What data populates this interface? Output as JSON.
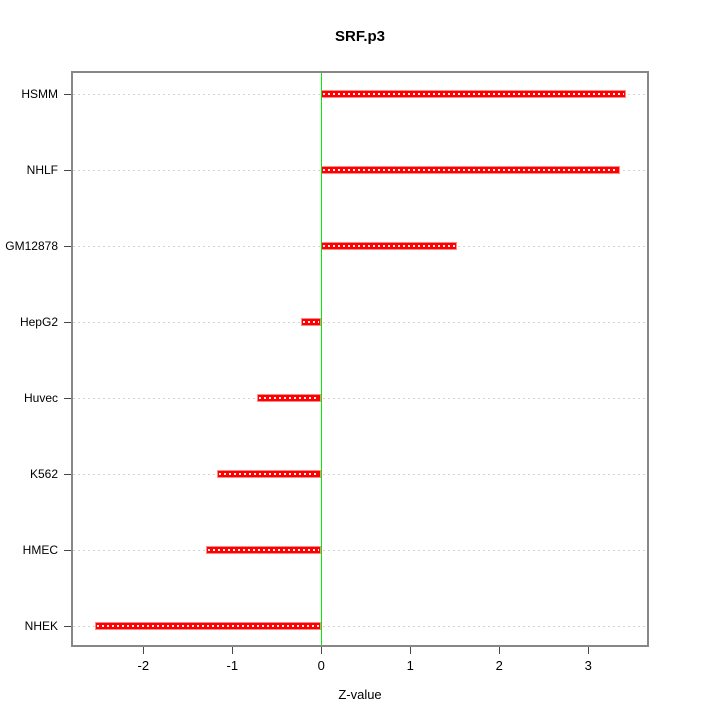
{
  "chart_data": {
    "type": "bar",
    "orientation": "horizontal",
    "title": "SRF.p3",
    "xlabel": "Z-value",
    "ylabel": "",
    "categories": [
      "HSMM",
      "NHLF",
      "GM12878",
      "HepG2",
      "Huvec",
      "K562",
      "HMEC",
      "NHEK"
    ],
    "values": [
      3.42,
      3.36,
      1.53,
      -0.23,
      -0.72,
      -1.17,
      -1.3,
      -2.54
    ],
    "xlim": [
      -2.79,
      3.66
    ],
    "xticks": [
      -2,
      -1,
      0,
      1,
      2,
      3
    ],
    "grid": "dotted-horizontal-per-category",
    "legend": "none",
    "zero_reference_line": 0,
    "colors": {
      "bar_fill": "#ff0000",
      "bar_edge": "#ff8a8a",
      "bar_inner_dots": "#ffffff",
      "zero_line": "#00ee00",
      "gridline": "#d4d4d4",
      "box_border": "#878787",
      "tick": "#474747",
      "text": "#000000",
      "background": "#ffffff"
    }
  }
}
